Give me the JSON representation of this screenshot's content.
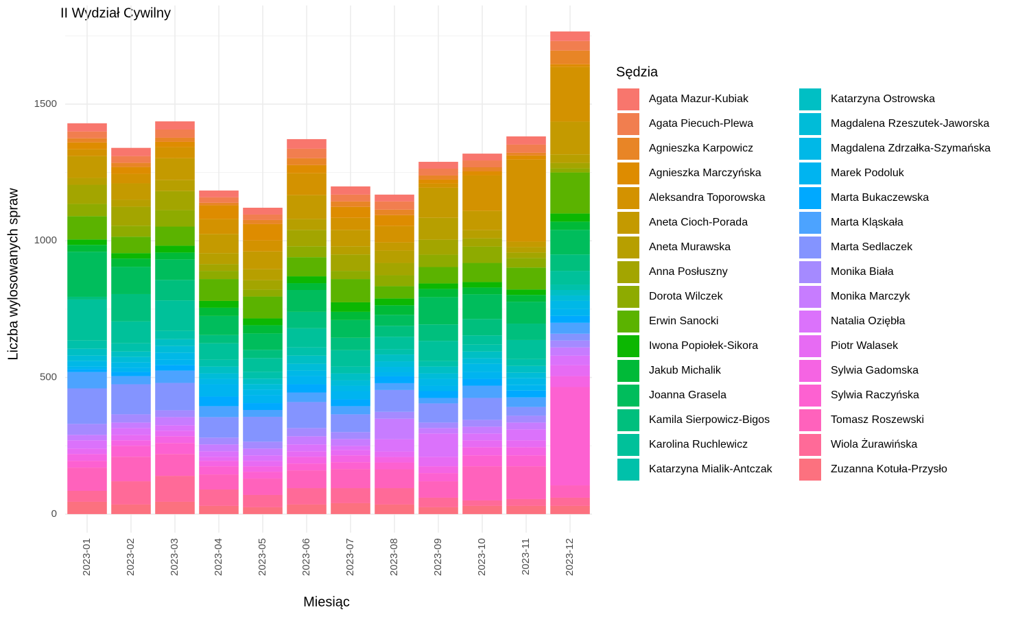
{
  "chart_data": {
    "type": "stacked_bar",
    "title": "II Wydział Cywilny",
    "x_label": "Miesiąc",
    "y_label": "Liczba wylosowanych spraw",
    "legend_title": "Sędzia",
    "categories": [
      "2023-01",
      "2023-02",
      "2023-03",
      "2023-04",
      "2023-05",
      "2023-06",
      "2023-07",
      "2023-08",
      "2023-09",
      "2023-10",
      "2023-11",
      "2023-12"
    ],
    "ylim": [
      -68,
      1861
    ],
    "yticks": [
      0,
      500,
      1000,
      1500
    ],
    "y_minor_ticks": [
      250,
      750,
      1250,
      1750
    ],
    "grid": true,
    "legend_position": "right",
    "series": [
      {
        "name": "Agata Mazur-Kubiak",
        "color": "#F8766D",
        "values": [
          30,
          30,
          30,
          25,
          25,
          35,
          30,
          25,
          25,
          25,
          30,
          35
        ]
      },
      {
        "name": "Agata Piecuch-Plewa",
        "color": "#F17E4F",
        "values": [
          25,
          25,
          30,
          20,
          20,
          35,
          25,
          30,
          25,
          25,
          30,
          35
        ]
      },
      {
        "name": "Agnieszka Karpowicz",
        "color": "#E88526",
        "values": [
          15,
          15,
          15,
          9,
          15,
          25,
          20,
          20,
          15,
          15,
          10,
          50
        ]
      },
      {
        "name": "Agnieszka Marczyńska",
        "color": "#DE8C00",
        "values": [
          25,
          25,
          20,
          50,
          60,
          30,
          40,
          40,
          15,
          15,
          15,
          10
        ]
      },
      {
        "name": "Aleksandra Toporowska",
        "color": "#D39200",
        "values": [
          25,
          35,
          40,
          55,
          40,
          80,
          44,
          60,
          15,
          130,
          300,
          200
        ]
      },
      {
        "name": "Aneta Cioch-Porada",
        "color": "#C49A00",
        "values": [
          80,
          60,
          80,
          70,
          65,
          87,
          60,
          30,
          110,
          70,
          20,
          120
        ]
      },
      {
        "name": "Aneta Murawska",
        "color": "#B79F00",
        "values": [
          25,
          25,
          40,
          40,
          40,
          40,
          30,
          45,
          80,
          30,
          20,
          31
        ]
      },
      {
        "name": "Anna Posłuszny",
        "color": "#A3A500",
        "values": [
          70,
          70,
          70,
          25,
          35,
          60,
          60,
          45,
          55,
          30,
          20,
          20
        ]
      },
      {
        "name": "Dorota Wilczek",
        "color": "#8EAB00",
        "values": [
          45,
          40,
          60,
          30,
          25,
          40,
          30,
          40,
          45,
          60,
          35,
          15
        ]
      },
      {
        "name": "Erwin Sanocki",
        "color": "#5BB300",
        "values": [
          85,
          60,
          70,
          80,
          80,
          70,
          85,
          45,
          60,
          70,
          80,
          150
        ]
      },
      {
        "name": "Iwona Popiołek-Sikora",
        "color": "#0CB702",
        "values": [
          20,
          20,
          25,
          25,
          25,
          25,
          35,
          25,
          20,
          20,
          20,
          30
        ]
      },
      {
        "name": "Jakub Michalik",
        "color": "#00BA38",
        "values": [
          25,
          30,
          25,
          30,
          30,
          25,
          30,
          35,
          30,
          25,
          25,
          30
        ]
      },
      {
        "name": "Joanna Grasela",
        "color": "#00BD5C",
        "values": [
          165,
          100,
          75,
          70,
          60,
          80,
          65,
          40,
          100,
          90,
          80,
          90
        ]
      },
      {
        "name": "Kamila Sierpowicz-Bigos",
        "color": "#00BF7D",
        "values": [
          10,
          100,
          75,
          30,
          30,
          60,
          45,
          40,
          60,
          60,
          60,
          60
        ]
      },
      {
        "name": "Karolina Ruchlewicz",
        "color": "#00C19A",
        "values": [
          150,
          80,
          112,
          60,
          50,
          70,
          60,
          45,
          74,
          34,
          70,
          50
        ]
      },
      {
        "name": "Katarzyna Mialik-Antczak",
        "color": "#00C1AA",
        "values": [
          30,
          30,
          30,
          25,
          25,
          30,
          25,
          20,
          20,
          25,
          25,
          20
        ]
      },
      {
        "name": "Katarzyna Ostrowska",
        "color": "#00BFC4",
        "values": [
          25,
          20,
          25,
          25,
          20,
          30,
          25,
          25,
          25,
          25,
          25,
          20
        ]
      },
      {
        "name": "Magdalena Rzeszutek-Jaworska",
        "color": "#00BCD8",
        "values": [
          20,
          20,
          25,
          20,
          20,
          25,
          20,
          20,
          20,
          20,
          20,
          20
        ]
      },
      {
        "name": "Magdalena Zdrzałka-Szymańska",
        "color": "#00B8E7",
        "values": [
          20,
          20,
          25,
          20,
          20,
          20,
          20,
          20,
          25,
          30,
          25,
          30
        ]
      },
      {
        "name": "Marek Podoluk",
        "color": "#00B4F0",
        "values": [
          10,
          15,
          20,
          45,
          30,
          30,
          30,
          15,
          20,
          25,
          20,
          25
        ]
      },
      {
        "name": "Marta Bukaczewska",
        "color": "#00A9FF",
        "values": [
          10,
          15,
          20,
          35,
          25,
          30,
          25,
          25,
          25,
          25,
          25,
          25
        ]
      },
      {
        "name": "Marta Kląskała",
        "color": "#4CA3FF",
        "values": [
          60,
          30,
          45,
          40,
          25,
          35,
          30,
          25,
          20,
          45,
          35,
          40
        ]
      },
      {
        "name": "Marta Sedlaczek",
        "color": "#8494FF",
        "values": [
          130,
          110,
          100,
          75,
          91,
          95,
          65,
          80,
          70,
          80,
          32,
          25
        ]
      },
      {
        "name": "Monika Biała",
        "color": "#A58AFF",
        "values": [
          40,
          30,
          25,
          25,
          25,
          30,
          25,
          25,
          20,
          25,
          25,
          25
        ]
      },
      {
        "name": "Monika Marczyk",
        "color": "#C77CFF",
        "values": [
          20,
          20,
          30,
          25,
          25,
          30,
          25,
          75,
          20,
          25,
          25,
          30
        ]
      },
      {
        "name": "Natalia Oziębła",
        "color": "#DB72FB",
        "values": [
          30,
          25,
          20,
          20,
          20,
          25,
          15,
          45,
          85,
          25,
          40,
          35
        ]
      },
      {
        "name": "Piotr Walasek",
        "color": "#E76BF3",
        "values": [
          20,
          20,
          20,
          15,
          20,
          20,
          20,
          20,
          35,
          25,
          25,
          40
        ]
      },
      {
        "name": "Sylwia Gadomska",
        "color": "#F564E3",
        "values": [
          25,
          20,
          25,
          20,
          20,
          25,
          25,
          20,
          25,
          30,
          30,
          40
        ]
      },
      {
        "name": "Sylwia Raczyńska",
        "color": "#FD61D1",
        "values": [
          25,
          40,
          40,
          30,
          25,
          25,
          25,
          25,
          30,
          40,
          40,
          360
        ]
      },
      {
        "name": "Tomasz Roszewski",
        "color": "#FF62BC",
        "values": [
          85,
          90,
          80,
          55,
          60,
          65,
          70,
          69,
          60,
          125,
          120,
          45
        ]
      },
      {
        "name": "Wiola Żurawińska",
        "color": "#FF6A98",
        "values": [
          40,
          85,
          95,
          60,
          45,
          60,
          55,
          60,
          35,
          20,
          25,
          30
        ]
      },
      {
        "name": "Zuzanna Kotuła-Przysło",
        "color": "#FC717F",
        "values": [
          45,
          35,
          45,
          30,
          25,
          35,
          40,
          35,
          25,
          30,
          30,
          30
        ]
      }
    ]
  }
}
